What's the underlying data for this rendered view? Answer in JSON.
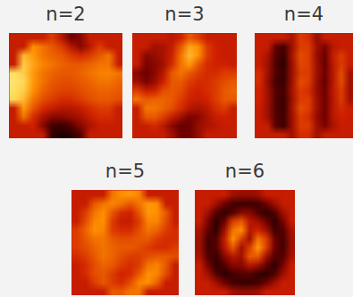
{
  "chart_data": [
    {
      "type": "heatmap",
      "title": "n=2",
      "tick_labels": false,
      "clim": [
        0,
        1
      ],
      "outside_value": 0.38,
      "cells": [
        [
          null,
          null,
          null,
          null,
          0.45,
          0.35,
          0.2,
          0.25,
          null,
          null,
          null,
          null
        ],
        [
          null,
          null,
          0.6,
          0.55,
          0.5,
          0.45,
          0.35,
          0.25,
          0.35,
          0.45,
          null,
          null
        ],
        [
          null,
          0.7,
          0.62,
          0.55,
          0.52,
          0.5,
          0.45,
          0.42,
          0.45,
          0.5,
          0.55,
          null
        ],
        [
          null,
          0.75,
          0.65,
          0.58,
          0.55,
          0.52,
          0.5,
          0.5,
          0.52,
          0.55,
          0.55,
          null
        ],
        [
          0.8,
          0.75,
          0.62,
          0.55,
          0.52,
          0.5,
          0.5,
          0.52,
          0.55,
          0.57,
          0.58,
          0.55
        ],
        [
          0.82,
          0.78,
          0.62,
          0.55,
          0.5,
          0.48,
          0.48,
          0.5,
          0.52,
          0.55,
          0.55,
          0.52
        ],
        [
          0.8,
          0.75,
          0.6,
          0.52,
          0.48,
          0.46,
          0.46,
          0.48,
          0.5,
          0.52,
          0.52,
          0.5
        ],
        [
          0.78,
          0.7,
          0.55,
          0.48,
          0.45,
          0.42,
          0.42,
          0.45,
          0.48,
          0.5,
          0.5,
          0.48
        ],
        [
          null,
          0.62,
          0.5,
          0.42,
          0.38,
          0.35,
          0.35,
          0.38,
          0.42,
          0.45,
          0.45,
          null
        ],
        [
          null,
          0.55,
          0.42,
          0.32,
          0.25,
          0.25,
          0.28,
          0.32,
          0.38,
          0.42,
          0.42,
          null
        ],
        [
          null,
          null,
          0.4,
          0.25,
          0.12,
          0.1,
          0.15,
          0.25,
          0.32,
          0.38,
          null,
          null
        ],
        [
          null,
          null,
          null,
          null,
          0.1,
          0.05,
          0.08,
          0.15,
          null,
          null,
          null,
          null
        ]
      ]
    },
    {
      "type": "heatmap",
      "title": "n=3",
      "tick_labels": false,
      "clim": [
        0,
        1
      ],
      "outside_value": 0.38,
      "cells": [
        [
          null,
          null,
          null,
          null,
          0.35,
          0.4,
          0.5,
          0.45,
          null,
          null,
          null,
          null
        ],
        [
          null,
          null,
          0.3,
          0.32,
          0.38,
          0.5,
          0.65,
          0.6,
          0.45,
          0.4,
          null,
          null
        ],
        [
          null,
          0.25,
          0.28,
          0.32,
          0.4,
          0.55,
          0.7,
          0.6,
          0.45,
          0.4,
          0.38,
          null
        ],
        [
          null,
          0.22,
          0.25,
          0.3,
          0.42,
          0.55,
          0.62,
          0.5,
          0.42,
          0.4,
          0.4,
          null
        ],
        [
          0.25,
          0.2,
          0.25,
          0.35,
          0.5,
          0.55,
          0.5,
          0.45,
          0.42,
          0.42,
          0.45,
          0.45
        ],
        [
          0.3,
          0.22,
          0.28,
          0.4,
          0.5,
          0.5,
          0.45,
          0.42,
          0.42,
          0.45,
          0.48,
          0.5
        ],
        [
          0.45,
          0.38,
          0.4,
          0.48,
          0.5,
          0.48,
          0.42,
          0.4,
          0.42,
          0.45,
          0.5,
          0.52
        ],
        [
          0.55,
          0.5,
          0.52,
          0.52,
          0.5,
          0.45,
          0.4,
          0.38,
          0.4,
          0.45,
          0.5,
          0.5
        ],
        [
          null,
          0.55,
          0.55,
          0.52,
          0.48,
          0.42,
          0.35,
          0.32,
          0.35,
          0.42,
          0.45,
          null
        ],
        [
          null,
          0.5,
          0.5,
          0.45,
          0.38,
          0.3,
          0.22,
          0.25,
          0.32,
          0.38,
          0.4,
          null
        ],
        [
          null,
          null,
          0.42,
          0.35,
          0.25,
          0.18,
          0.2,
          0.28,
          0.32,
          0.35,
          null,
          null
        ],
        [
          null,
          null,
          null,
          null,
          0.3,
          0.2,
          0.2,
          0.28,
          null,
          null,
          null,
          null
        ]
      ]
    },
    {
      "type": "heatmap",
      "title": "n=4",
      "tick_labels": false,
      "clim": [
        0,
        1
      ],
      "outside_value": 0.38,
      "cells": [
        [
          null,
          null,
          null,
          null,
          0.32,
          0.45,
          0.42,
          0.28,
          null,
          null,
          null,
          null
        ],
        [
          null,
          null,
          0.18,
          0.12,
          0.3,
          0.45,
          0.45,
          0.3,
          0.22,
          0.35,
          null,
          null
        ],
        [
          null,
          0.32,
          0.15,
          0.1,
          0.32,
          0.48,
          0.45,
          0.28,
          0.2,
          0.38,
          0.45,
          null
        ],
        [
          null,
          0.3,
          0.14,
          0.08,
          0.3,
          0.47,
          0.45,
          0.3,
          0.18,
          0.36,
          0.45,
          null
        ],
        [
          0.42,
          0.3,
          0.15,
          0.1,
          0.3,
          0.45,
          0.45,
          0.3,
          0.2,
          0.35,
          0.48,
          0.3
        ],
        [
          0.42,
          0.28,
          0.12,
          0.1,
          0.3,
          0.48,
          0.45,
          0.28,
          0.18,
          0.35,
          0.48,
          0.3
        ],
        [
          0.4,
          0.3,
          0.15,
          0.12,
          0.32,
          0.45,
          0.42,
          0.28,
          0.2,
          0.36,
          0.45,
          0.3
        ],
        [
          0.4,
          0.3,
          0.15,
          0.1,
          0.3,
          0.45,
          0.45,
          0.3,
          0.2,
          0.35,
          0.45,
          0.3
        ],
        [
          null,
          0.3,
          0.14,
          0.1,
          0.32,
          0.48,
          0.45,
          0.3,
          0.2,
          0.35,
          0.42,
          null
        ],
        [
          null,
          0.3,
          0.15,
          0.12,
          0.3,
          0.45,
          0.42,
          0.28,
          0.2,
          0.35,
          0.4,
          null
        ],
        [
          null,
          null,
          0.15,
          0.1,
          0.3,
          0.45,
          0.45,
          0.3,
          0.22,
          0.32,
          null,
          null
        ],
        [
          null,
          null,
          null,
          null,
          0.3,
          0.42,
          0.42,
          0.3,
          null,
          null,
          null,
          null
        ]
      ]
    },
    {
      "type": "heatmap",
      "title": "n=5",
      "tick_labels": false,
      "clim": [
        0,
        1
      ],
      "outside_value": 0.38,
      "cells": [
        [
          null,
          null,
          null,
          null,
          0.55,
          0.6,
          0.62,
          0.58,
          null,
          null,
          null,
          null
        ],
        [
          null,
          null,
          0.5,
          0.55,
          0.58,
          0.55,
          0.5,
          0.55,
          0.62,
          0.6,
          null,
          null
        ],
        [
          null,
          0.45,
          0.55,
          0.6,
          0.5,
          0.42,
          0.4,
          0.5,
          0.62,
          0.6,
          0.5,
          null
        ],
        [
          null,
          0.48,
          0.58,
          0.6,
          0.45,
          0.38,
          0.38,
          0.45,
          0.58,
          0.58,
          0.48,
          null
        ],
        [
          0.45,
          0.52,
          0.6,
          0.58,
          0.45,
          0.42,
          0.42,
          0.48,
          0.55,
          0.52,
          0.45,
          0.42
        ],
        [
          0.45,
          0.5,
          0.55,
          0.55,
          0.5,
          0.48,
          0.48,
          0.5,
          0.5,
          0.45,
          0.42,
          0.42
        ],
        [
          0.45,
          0.48,
          0.52,
          0.55,
          0.52,
          0.5,
          0.5,
          0.48,
          0.45,
          0.42,
          0.42,
          0.45
        ],
        [
          0.42,
          0.45,
          0.5,
          0.55,
          0.52,
          0.48,
          0.45,
          0.45,
          0.48,
          0.5,
          0.5,
          0.48
        ],
        [
          null,
          0.42,
          0.48,
          0.52,
          0.5,
          0.45,
          0.42,
          0.45,
          0.55,
          0.58,
          0.5,
          null
        ],
        [
          null,
          0.42,
          0.48,
          0.5,
          0.45,
          0.4,
          0.42,
          0.5,
          0.6,
          0.58,
          0.48,
          null
        ],
        [
          null,
          null,
          0.45,
          0.5,
          0.45,
          0.42,
          0.48,
          0.58,
          0.6,
          0.52,
          null,
          null
        ],
        [
          null,
          null,
          null,
          null,
          0.5,
          0.5,
          0.55,
          0.55,
          null,
          null,
          null,
          null
        ]
      ]
    },
    {
      "type": "heatmap",
      "title": "n=6",
      "tick_labels": false,
      "clim": [
        0,
        1
      ],
      "outside_value": 0.38,
      "cells": [
        [
          null,
          null,
          null,
          null,
          0.3,
          0.28,
          0.28,
          0.3,
          null,
          null,
          null,
          null
        ],
        [
          null,
          null,
          0.3,
          0.2,
          0.12,
          0.1,
          0.1,
          0.12,
          0.2,
          0.3,
          null,
          null
        ],
        [
          null,
          0.3,
          0.15,
          0.08,
          0.15,
          0.25,
          0.25,
          0.15,
          0.08,
          0.15,
          0.3,
          null
        ],
        [
          null,
          0.22,
          0.08,
          0.2,
          0.45,
          0.5,
          0.35,
          0.3,
          0.2,
          0.08,
          0.22,
          null
        ],
        [
          0.32,
          0.18,
          0.08,
          0.3,
          0.55,
          0.6,
          0.35,
          0.4,
          0.3,
          0.12,
          0.15,
          0.32
        ],
        [
          0.3,
          0.12,
          0.15,
          0.38,
          0.6,
          0.45,
          0.3,
          0.55,
          0.45,
          0.2,
          0.12,
          0.3
        ],
        [
          0.3,
          0.12,
          0.15,
          0.35,
          0.5,
          0.3,
          0.45,
          0.62,
          0.45,
          0.2,
          0.12,
          0.3
        ],
        [
          0.32,
          0.15,
          0.1,
          0.25,
          0.35,
          0.3,
          0.5,
          0.5,
          0.3,
          0.15,
          0.15,
          0.32
        ],
        [
          null,
          0.22,
          0.08,
          0.15,
          0.25,
          0.25,
          0.35,
          0.3,
          0.18,
          0.08,
          0.22,
          null
        ],
        [
          null,
          0.3,
          0.15,
          0.08,
          0.12,
          0.15,
          0.15,
          0.1,
          0.08,
          0.15,
          0.3,
          null
        ],
        [
          null,
          null,
          0.3,
          0.2,
          0.12,
          0.1,
          0.1,
          0.12,
          0.2,
          0.3,
          null,
          null
        ],
        [
          null,
          null,
          null,
          null,
          0.3,
          0.28,
          0.28,
          0.3,
          null,
          null,
          null,
          null
        ]
      ]
    }
  ]
}
